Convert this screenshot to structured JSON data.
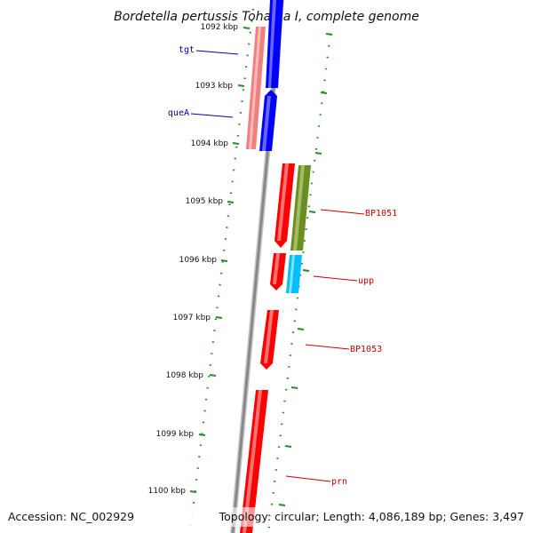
{
  "title": "Bordetella pertussis Tohama I, complete genome",
  "footer": {
    "accession": "Accession: NC_002929",
    "summary": "Topology: circular; Length: 4,086,189 bp; Genes: 3,497"
  },
  "ticks": [
    "1092 kbp",
    "1093 kbp",
    "1094 kbp",
    "1095 kbp",
    "1096 kbp",
    "1097 kbp",
    "1098 kbp",
    "1099 kbp",
    "1100 kbp"
  ],
  "genes": [
    {
      "name": "tgt",
      "strand": "minus",
      "color": "#0000ff"
    },
    {
      "name": "queA",
      "strand": "minus",
      "color": "#0000ff"
    },
    {
      "name": "BP1051",
      "strand": "plus",
      "color": "#cc0000"
    },
    {
      "name": "upp",
      "strand": "plus",
      "color": "#cc0000"
    },
    {
      "name": "BP1053",
      "strand": "plus",
      "color": "#cc0000"
    },
    {
      "name": "prn",
      "strand": "plus",
      "color": "#cc0000"
    }
  ],
  "colors": {
    "backbone": "#888888",
    "tick": "#2a8a2a",
    "blue_feature": "#0000ff",
    "pink_feature": "#f08080",
    "red_feature": "#ff0000",
    "olive_feature": "#6b8e23",
    "cyan_feature": "#00bfff"
  }
}
